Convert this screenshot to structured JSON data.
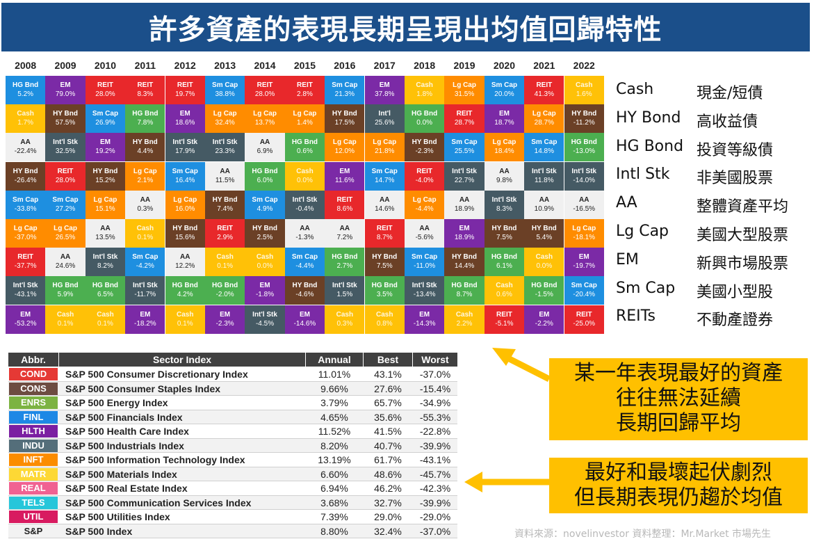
{
  "title": "許多資產的表現長期呈現出均值回歸特性",
  "colors": {
    "HG Bnd": "#1e8fe0",
    "EM": "#7b2aa6",
    "REIT": "#e8282b",
    "Sm Cap": "#1e8fe0",
    "Cash": "#ffc107",
    "Lg Cap": "#ff8c00",
    "HY Bnd": "#6b4026",
    "Int'l Stk": "#455a64",
    "AA": "#f0f0f0",
    "HG Bnd_alt": "#4caf50"
  },
  "chart_data": {
    "type": "table",
    "years": [
      "2008",
      "2009",
      "2010",
      "2011",
      "2012",
      "2013",
      "2014",
      "2015",
      "2016",
      "2017",
      "2018",
      "2019",
      "2020",
      "2021",
      "2022"
    ],
    "columns": [
      [
        [
          "HG Bnd",
          "5.2%"
        ],
        [
          "Cash",
          "1.7%"
        ],
        [
          "AA",
          "-22.4%"
        ],
        [
          "HY Bnd",
          "-26.4%"
        ],
        [
          "Sm Cap",
          "-33.8%"
        ],
        [
          "Lg Cap",
          "-37.0%"
        ],
        [
          "REIT",
          "-37.7%"
        ],
        [
          "Int'l Stk",
          "-43.1%"
        ],
        [
          "EM",
          "-53.2%"
        ]
      ],
      [
        [
          "EM",
          "79.0%"
        ],
        [
          "HY Bnd",
          "57.5%"
        ],
        [
          "Int'l Stk",
          "32.5%"
        ],
        [
          "REIT",
          "28.0%"
        ],
        [
          "Sm Cap",
          "27.2%"
        ],
        [
          "Lg Cap",
          "26.5%"
        ],
        [
          "AA",
          "24.6%"
        ],
        [
          "HG Bnd",
          "5.9%"
        ],
        [
          "Cash",
          "0.1%"
        ]
      ],
      [
        [
          "REIT",
          "28.0%"
        ],
        [
          "Sm Cap",
          "26.9%"
        ],
        [
          "EM",
          "19.2%"
        ],
        [
          "HY Bnd",
          "15.2%"
        ],
        [
          "Lg Cap",
          "15.1%"
        ],
        [
          "AA",
          "13.5%"
        ],
        [
          "Int'l Stk",
          "8.2%"
        ],
        [
          "HG Bnd",
          "6.5%"
        ],
        [
          "Cash",
          "0.1%"
        ]
      ],
      [
        [
          "REIT",
          "8.3%"
        ],
        [
          "HG Bnd",
          "7.8%"
        ],
        [
          "HY Bnd",
          "4.4%"
        ],
        [
          "Lg Cap",
          "2.1%"
        ],
        [
          "AA",
          "0.3%"
        ],
        [
          "Cash",
          "0.1%"
        ],
        [
          "Sm Cap",
          "-4.2%"
        ],
        [
          "Int'l Stk",
          "-11.7%"
        ],
        [
          "EM",
          "-18.2%"
        ]
      ],
      [
        [
          "REIT",
          "19.7%"
        ],
        [
          "EM",
          "18.6%"
        ],
        [
          "Int'l Stk",
          "17.9%"
        ],
        [
          "Sm Cap",
          "16.4%"
        ],
        [
          "Lg Cap",
          "16.0%"
        ],
        [
          "HY Bnd",
          "15.6%"
        ],
        [
          "AA",
          "12.2%"
        ],
        [
          "HG Bnd",
          "4.2%"
        ],
        [
          "Cash",
          "0.1%"
        ]
      ],
      [
        [
          "Sm Cap",
          "38.8%"
        ],
        [
          "Lg Cap",
          "32.4%"
        ],
        [
          "Int'l Stk",
          "23.3%"
        ],
        [
          "AA",
          "11.5%"
        ],
        [
          "HY Bnd",
          "7.4%"
        ],
        [
          "REIT",
          "2.9%"
        ],
        [
          "Cash",
          "0.1%"
        ],
        [
          "HG Bnd",
          "-2.0%"
        ],
        [
          "EM",
          "-2.3%"
        ]
      ],
      [
        [
          "REIT",
          "28.0%"
        ],
        [
          "Lg Cap",
          "13.7%"
        ],
        [
          "AA",
          "6.9%"
        ],
        [
          "HG Bnd",
          "6.0%"
        ],
        [
          "Sm Cap",
          "4.9%"
        ],
        [
          "HY Bnd",
          "2.5%"
        ],
        [
          "Cash",
          "0.0%"
        ],
        [
          "EM",
          "-1.8%"
        ],
        [
          "Int'l Stk",
          "-4.5%"
        ]
      ],
      [
        [
          "REIT",
          "2.8%"
        ],
        [
          "Lg Cap",
          "1.4%"
        ],
        [
          "HG Bnd",
          "0.6%"
        ],
        [
          "Cash",
          "0.0%"
        ],
        [
          "Int'l Stk",
          "-0.4%"
        ],
        [
          "AA",
          "-1.3%"
        ],
        [
          "Sm Cap",
          "-4.4%"
        ],
        [
          "HY Bnd",
          "-4.6%"
        ],
        [
          "EM",
          "-14.6%"
        ]
      ],
      [
        [
          "Sm Cap",
          "21.3%"
        ],
        [
          "HY Bnd",
          "17.5%"
        ],
        [
          "Lg Cap",
          "12.0%"
        ],
        [
          "EM",
          "11.6%"
        ],
        [
          "REIT",
          "8.6%"
        ],
        [
          "AA",
          "7.2%"
        ],
        [
          "HG Bnd",
          "2.7%"
        ],
        [
          "Int'l Stk",
          "1.5%"
        ],
        [
          "Cash",
          "0.3%"
        ]
      ],
      [
        [
          "EM",
          "37.8%"
        ],
        [
          "Int'l",
          "25.6%"
        ],
        [
          "Lg Cap",
          "21.8%"
        ],
        [
          "Sm Cap",
          "14.7%"
        ],
        [
          "AA",
          "14.6%"
        ],
        [
          "REIT",
          "8.7%"
        ],
        [
          "HY Bnd",
          "7.5%"
        ],
        [
          "HG Bnd",
          "3.5%"
        ],
        [
          "Cash",
          "0.8%"
        ]
      ],
      [
        [
          "Cash",
          "1.8%"
        ],
        [
          "HG Bnd",
          "0.0%"
        ],
        [
          "HY Bnd",
          "-2.3%"
        ],
        [
          "REIT",
          "-4.0%"
        ],
        [
          "Lg Cap",
          "-4.4%"
        ],
        [
          "AA",
          "-5.6%"
        ],
        [
          "Sm Cap",
          "-11.0%"
        ],
        [
          "Int'l Stk",
          "-13.4%"
        ],
        [
          "EM",
          "-14.3%"
        ]
      ],
      [
        [
          "Lg Cap",
          "31.5%"
        ],
        [
          "REIT",
          "28.7%"
        ],
        [
          "Sm Cap",
          "25.5%"
        ],
        [
          "Int'l Stk",
          "22.7%"
        ],
        [
          "AA",
          "18.9%"
        ],
        [
          "EM",
          "18.9%"
        ],
        [
          "HY Bnd",
          "14.4%"
        ],
        [
          "HG Bnd",
          "8.7%"
        ],
        [
          "Cash",
          "2.2%"
        ]
      ],
      [
        [
          "Sm Cap",
          "20.0%"
        ],
        [
          "EM",
          "18.7%"
        ],
        [
          "Lg Cap",
          "18.4%"
        ],
        [
          "AA",
          "9.8%"
        ],
        [
          "Int'l Stk",
          "8.3%"
        ],
        [
          "HY Bnd",
          "7.5%"
        ],
        [
          "HG Bnd",
          "6.1%"
        ],
        [
          "Cash",
          "0.6%"
        ],
        [
          "REIT",
          "-5.1%"
        ]
      ],
      [
        [
          "REIT",
          "41.3%"
        ],
        [
          "Lg Cap",
          "28.7%"
        ],
        [
          "Sm Cap",
          "14.8%"
        ],
        [
          "Int'l Stk",
          "11.8%"
        ],
        [
          "AA",
          "10.9%"
        ],
        [
          "HY Bnd",
          "5.4%"
        ],
        [
          "Cash",
          "0.0%"
        ],
        [
          "HG Bnd",
          "-1.5%"
        ],
        [
          "EM",
          "-2.2%"
        ]
      ],
      [
        [
          "Cash",
          "1.6%"
        ],
        [
          "HY Bnd",
          "-11.2%"
        ],
        [
          "HG Bnd",
          "-13.0%"
        ],
        [
          "Int'l Stk",
          "-14.0%"
        ],
        [
          "AA",
          "-16.5%"
        ],
        [
          "Lg Cap",
          "-18.1%"
        ],
        [
          "EM",
          "-19.7%"
        ],
        [
          "Sm Cap",
          "-20.4%"
        ],
        [
          "REIT",
          "-25.0%"
        ]
      ]
    ]
  },
  "legend": [
    {
      "en": "Cash",
      "zh": "現金/短債"
    },
    {
      "en": "HY Bond",
      "zh": "高收益債"
    },
    {
      "en": "HG Bond",
      "zh": "投資等級債"
    },
    {
      "en": "Intl Stk",
      "zh": "非美國股票"
    },
    {
      "en": "AA",
      "zh": "整體資產平均"
    },
    {
      "en": "Lg Cap",
      "zh": "美國大型股票"
    },
    {
      "en": "EM",
      "zh": "新興市場股票"
    },
    {
      "en": "Sm Cap",
      "zh": "美國小型股"
    },
    {
      "en": "REITs",
      "zh": "不動產證券"
    }
  ],
  "sector_table": {
    "headers": [
      "Abbr.",
      "Sector Index",
      "Annual",
      "Best",
      "Worst"
    ],
    "rows": [
      {
        "abbr": "COND",
        "color": "#e53935",
        "name": "S&P 500 Consumer Discretionary Index",
        "annual": "11.01%",
        "best": "43.1%",
        "worst": "-37.0%"
      },
      {
        "abbr": "CONS",
        "color": "#6d4c41",
        "name": "S&P 500 Consumer Staples Index",
        "annual": "9.66%",
        "best": "27.6%",
        "worst": "-15.4%"
      },
      {
        "abbr": "ENRS",
        "color": "#7cb342",
        "name": "S&P 500 Energy Index",
        "annual": "3.79%",
        "best": "65.7%",
        "worst": "-34.9%"
      },
      {
        "abbr": "FINL",
        "color": "#1e88e5",
        "name": "S&P 500 Financials Index",
        "annual": "4.65%",
        "best": "35.6%",
        "worst": "-55.3%"
      },
      {
        "abbr": "HLTH",
        "color": "#7b1fa2",
        "name": "S&P 500 Health Care Index",
        "annual": "11.52%",
        "best": "41.5%",
        "worst": "-22.8%"
      },
      {
        "abbr": "INDU",
        "color": "#546e7a",
        "name": "S&P 500 Industrials Index",
        "annual": "8.20%",
        "best": "40.7%",
        "worst": "-39.9%"
      },
      {
        "abbr": "INFT",
        "color": "#fb8c00",
        "name": "S&P 500 Information Technology Index",
        "annual": "13.19%",
        "best": "61.7%",
        "worst": "-43.1%"
      },
      {
        "abbr": "MATR",
        "color": "#fdd835",
        "name": "S&P 500 Materials Index",
        "annual": "6.60%",
        "best": "48.6%",
        "worst": "-45.7%"
      },
      {
        "abbr": "REAL",
        "color": "#f06292",
        "name": "S&P 500 Real Estate Index",
        "annual": "6.94%",
        "best": "46.2%",
        "worst": "-42.3%"
      },
      {
        "abbr": "TELS",
        "color": "#26c6da",
        "name": "S&P 500 Communication Services Index",
        "annual": "3.68%",
        "best": "32.7%",
        "worst": "-39.9%"
      },
      {
        "abbr": "UTIL",
        "color": "#d81b60",
        "name": "S&P 500 Utilities Index",
        "annual": "7.39%",
        "best": "29.0%",
        "worst": "-29.0%"
      },
      {
        "abbr": "S&P",
        "color": "#f2f2f2",
        "name": "S&P 500 Index",
        "annual": "8.80%",
        "best": "32.4%",
        "worst": "-37.0%"
      }
    ]
  },
  "callouts": {
    "first": [
      "某一年表現最好的資產",
      "往往無法延續",
      "長期回歸平均"
    ],
    "second": [
      "最好和最壞起伏劇烈",
      "但長期表現仍趨於均值"
    ]
  },
  "source": "資料來源：novelinvestor 資料整理：Mr.Market 市場先生"
}
